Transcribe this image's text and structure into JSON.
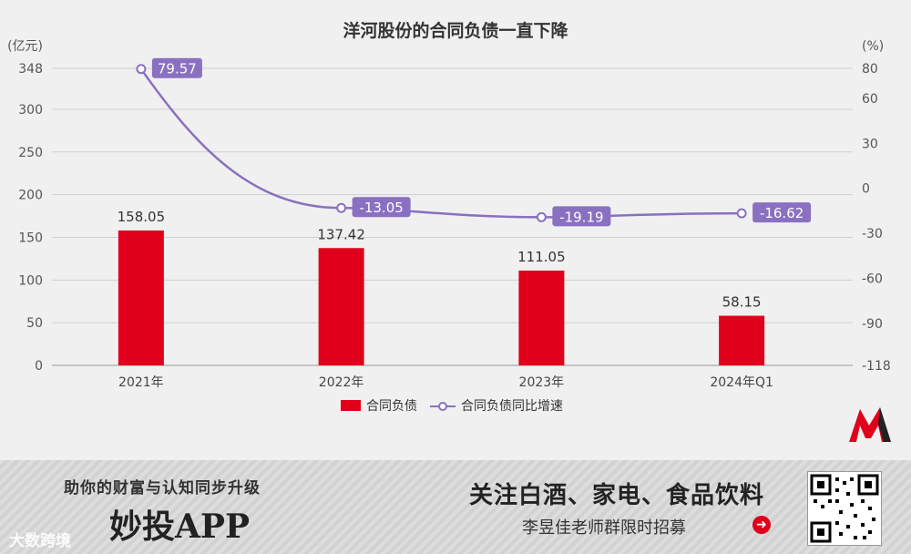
{
  "chart_data": {
    "type": "bar+line",
    "title": "洋河股份的合同负债一直下降",
    "categories": [
      "2021年",
      "2022年",
      "2023年",
      "2024年Q1"
    ],
    "left_axis": {
      "unit": "(亿元)",
      "ylim": [
        0,
        348
      ],
      "ticks": [
        0,
        50,
        100,
        150,
        200,
        250,
        300,
        348
      ]
    },
    "right_axis": {
      "unit": "(%)",
      "ylim": [
        -118,
        80
      ],
      "ticks": [
        -118,
        -90,
        -60,
        -30,
        0,
        30,
        60,
        80
      ]
    },
    "series": [
      {
        "name": "合同负债",
        "type": "bar",
        "axis": "left",
        "color": "#e0001b",
        "values": [
          158.05,
          137.42,
          111.05,
          58.15
        ],
        "labels": [
          "158.05",
          "137.42",
          "111.05",
          "58.15"
        ]
      },
      {
        "name": "合同负债同比增速",
        "type": "line",
        "axis": "right",
        "color": "#8a70c0",
        "values": [
          79.57,
          -13.05,
          -19.19,
          -16.62
        ],
        "labels": [
          "79.57",
          "-13.05",
          "-19.19",
          "-16.62"
        ]
      }
    ],
    "grid": true,
    "legend": "bottom-center"
  },
  "banner": {
    "slogan": "助你的财富与认知同步升级",
    "app_name": "妙投APP",
    "follow_text": "关注白酒、家电、食品饮料",
    "recruit_text": "李昱佳老师群限时招募",
    "watermark": "大数跨境"
  },
  "colors": {
    "bar": "#e0001b",
    "line": "#8a70c0",
    "background": "#f0f0f0"
  }
}
